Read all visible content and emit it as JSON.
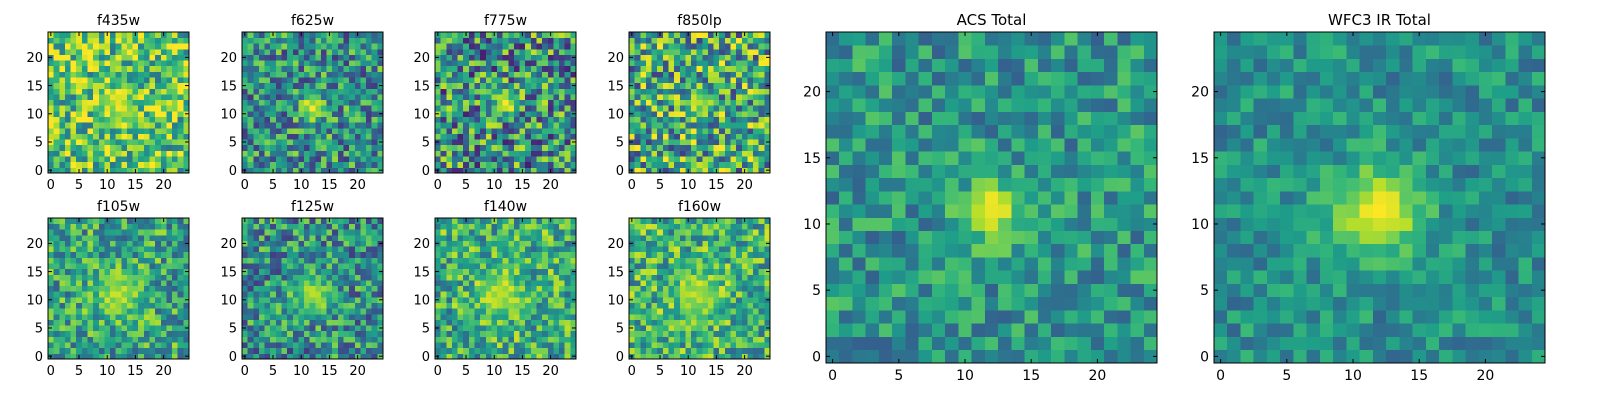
{
  "colors": {
    "colormap": [
      "#440154",
      "#482878",
      "#3e4989",
      "#31688e",
      "#26828e",
      "#1f9e89",
      "#35b779",
      "#6ece58",
      "#b5de2b",
      "#fde725"
    ],
    "background": "#ffffff",
    "frame": "#000000"
  },
  "chart_data": [
    {
      "type": "heatmap",
      "title": "f435w",
      "grid": [
        25,
        25
      ],
      "xlim": [
        -0.5,
        24.5
      ],
      "ylim": [
        -0.5,
        24.5
      ],
      "xticks": [
        "0",
        "5",
        "10",
        "15",
        "20"
      ],
      "yticks": [
        "0",
        "5",
        "10",
        "15",
        "20"
      ],
      "colormap": "viridis",
      "peak": [
        12,
        12
      ],
      "peak_value": 0.92,
      "background_level": 0.72,
      "noise": 0.34,
      "peak_sigma": 2.2,
      "seed": 11
    },
    {
      "type": "heatmap",
      "title": "f625w",
      "grid": [
        25,
        25
      ],
      "xlim": [
        -0.5,
        24.5
      ],
      "ylim": [
        -0.5,
        24.5
      ],
      "xticks": [
        "0",
        "5",
        "10",
        "15",
        "20"
      ],
      "yticks": [
        "0",
        "5",
        "10",
        "15",
        "20"
      ],
      "colormap": "viridis",
      "peak": [
        12,
        11
      ],
      "peak_value": 0.98,
      "background_level": 0.5,
      "noise": 0.34,
      "peak_sigma": 1.6,
      "seed": 23
    },
    {
      "type": "heatmap",
      "title": "f775w",
      "grid": [
        25,
        25
      ],
      "xlim": [
        -0.5,
        24.5
      ],
      "ylim": [
        -0.5,
        24.5
      ],
      "xticks": [
        "0",
        "5",
        "10",
        "15",
        "20"
      ],
      "yticks": [
        "0",
        "5",
        "10",
        "15",
        "20"
      ],
      "colormap": "viridis",
      "peak": [
        12,
        12
      ],
      "peak_value": 0.95,
      "background_level": 0.5,
      "noise": 0.42,
      "peak_sigma": 1.6,
      "seed": 37
    },
    {
      "type": "heatmap",
      "title": "f850lp",
      "grid": [
        25,
        25
      ],
      "xlim": [
        -0.5,
        24.5
      ],
      "ylim": [
        -0.5,
        24.5
      ],
      "xticks": [
        "0",
        "5",
        "10",
        "15",
        "20"
      ],
      "yticks": [
        "0",
        "5",
        "10",
        "15",
        "20"
      ],
      "colormap": "viridis",
      "peak": [
        12,
        12
      ],
      "peak_value": 0.85,
      "background_level": 0.6,
      "noise": 0.42,
      "peak_sigma": 1.8,
      "seed": 41
    },
    {
      "type": "heatmap",
      "title": "f105w",
      "grid": [
        25,
        25
      ],
      "xlim": [
        -0.5,
        24.5
      ],
      "ylim": [
        -0.5,
        24.5
      ],
      "xticks": [
        "0",
        "5",
        "10",
        "15",
        "20"
      ],
      "yticks": [
        "0",
        "5",
        "10",
        "15",
        "20"
      ],
      "colormap": "viridis",
      "peak": [
        12,
        11
      ],
      "peak_value": 0.88,
      "background_level": 0.58,
      "noise": 0.3,
      "peak_sigma": 3.0,
      "seed": 53
    },
    {
      "type": "heatmap",
      "title": "f125w",
      "grid": [
        25,
        25
      ],
      "xlim": [
        -0.5,
        24.5
      ],
      "ylim": [
        -0.5,
        24.5
      ],
      "xticks": [
        "0",
        "5",
        "10",
        "15",
        "20"
      ],
      "yticks": [
        "0",
        "5",
        "10",
        "15",
        "20"
      ],
      "colormap": "viridis",
      "peak": [
        12,
        11
      ],
      "peak_value": 0.85,
      "background_level": 0.5,
      "noise": 0.32,
      "peak_sigma": 2.6,
      "seed": 67
    },
    {
      "type": "heatmap",
      "title": "f140w",
      "grid": [
        25,
        25
      ],
      "xlim": [
        -0.5,
        24.5
      ],
      "ylim": [
        -0.5,
        24.5
      ],
      "xticks": [
        "0",
        "5",
        "10",
        "15",
        "20"
      ],
      "yticks": [
        "0",
        "5",
        "10",
        "15",
        "20"
      ],
      "colormap": "viridis",
      "peak": [
        11,
        11
      ],
      "peak_value": 0.9,
      "background_level": 0.62,
      "noise": 0.3,
      "peak_sigma": 3.0,
      "seed": 79
    },
    {
      "type": "heatmap",
      "title": "f160w",
      "grid": [
        25,
        25
      ],
      "xlim": [
        -0.5,
        24.5
      ],
      "ylim": [
        -0.5,
        24.5
      ],
      "xticks": [
        "0",
        "5",
        "10",
        "15",
        "20"
      ],
      "yticks": [
        "0",
        "5",
        "10",
        "15",
        "20"
      ],
      "colormap": "viridis",
      "peak": [
        12,
        11
      ],
      "peak_value": 0.9,
      "background_level": 0.64,
      "noise": 0.3,
      "peak_sigma": 3.0,
      "seed": 83
    },
    {
      "type": "heatmap",
      "title": "ACS Total",
      "grid": [
        25,
        25
      ],
      "xlim": [
        -0.5,
        24.5
      ],
      "ylim": [
        -0.5,
        24.5
      ],
      "xticks": [
        "0",
        "5",
        "10",
        "15",
        "20"
      ],
      "yticks": [
        "0",
        "5",
        "10",
        "15",
        "20"
      ],
      "colormap": "viridis",
      "peak": [
        12,
        11
      ],
      "peak_value": 1.0,
      "background_level": 0.52,
      "noise": 0.22,
      "peak_sigma": 1.6,
      "seed": 97
    },
    {
      "type": "heatmap",
      "title": "WFC3 IR Total",
      "grid": [
        25,
        25
      ],
      "xlim": [
        -0.5,
        24.5
      ],
      "ylim": [
        -0.5,
        24.5
      ],
      "xticks": [
        "0",
        "5",
        "10",
        "15",
        "20"
      ],
      "yticks": [
        "0",
        "5",
        "10",
        "15",
        "20"
      ],
      "colormap": "viridis",
      "peak": [
        12,
        11
      ],
      "peak_value": 1.0,
      "background_level": 0.5,
      "noise": 0.18,
      "peak_sigma": 2.4,
      "seed": 101
    }
  ]
}
